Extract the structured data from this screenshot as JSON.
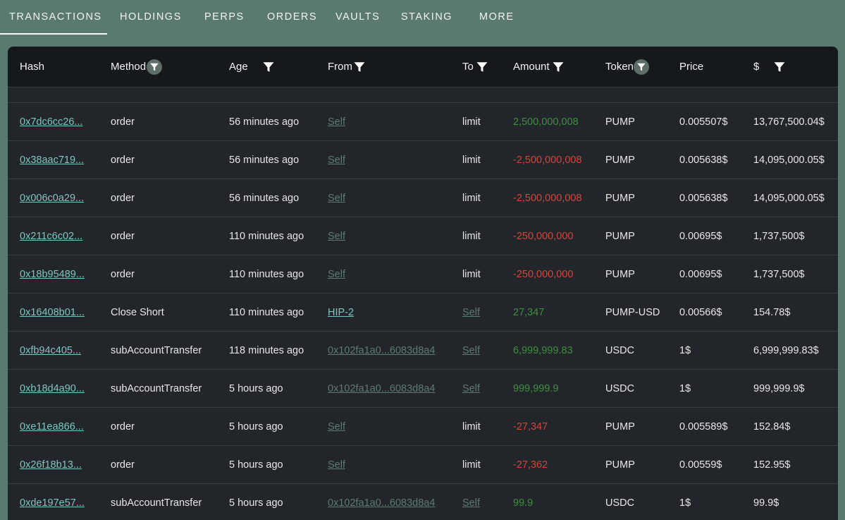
{
  "tabs": [
    {
      "label": "TRANSACTIONS",
      "active": true
    },
    {
      "label": "HOLDINGS"
    },
    {
      "label": "PERPS"
    },
    {
      "label": "ORDERS"
    },
    {
      "label": "VAULTS"
    },
    {
      "label": "STAKING"
    },
    {
      "label": "MORE"
    }
  ],
  "columns": {
    "hash": "Hash",
    "method": "Method",
    "age": "Age",
    "from": "From",
    "to": "To",
    "amount": "Amount",
    "token": "Token",
    "price": "Price",
    "usd": "$"
  },
  "rows": [
    {
      "hash": "0x7dc6cc26...",
      "method": "order",
      "age": "56 minutes ago",
      "from": "Self",
      "to": "limit",
      "amount": "2,500,000,008",
      "token": "PUMP",
      "price": "0.005507$",
      "usd": "13,767,500.04$"
    },
    {
      "hash": "0x38aac719...",
      "method": "order",
      "age": "56 minutes ago",
      "from": "Self",
      "to": "limit",
      "amount": "-2,500,000,008",
      "token": "PUMP",
      "price": "0.005638$",
      "usd": "14,095,000.05$"
    },
    {
      "hash": "0x006c0a29...",
      "method": "order",
      "age": "56 minutes ago",
      "from": "Self",
      "to": "limit",
      "amount": "-2,500,000,008",
      "token": "PUMP",
      "price": "0.005638$",
      "usd": "14,095,000.05$"
    },
    {
      "hash": "0x211c6c02...",
      "method": "order",
      "age": "110 minutes ago",
      "from": "Self",
      "to": "limit",
      "amount": "-250,000,000",
      "token": "PUMP",
      "price": "0.00695$",
      "usd": "1,737,500$"
    },
    {
      "hash": "0x18b95489...",
      "method": "order",
      "age": "110 minutes ago",
      "from": "Self",
      "to": "limit",
      "amount": "-250,000,000",
      "token": "PUMP",
      "price": "0.00695$",
      "usd": "1,737,500$"
    },
    {
      "hash": "0x16408b01...",
      "method": "Close Short",
      "age": "110 minutes ago",
      "from": "HIP-2",
      "to": "Self",
      "amount": "27,347",
      "token": "PUMP-USD",
      "price": "0.00566$",
      "usd": "154.78$"
    },
    {
      "hash": "0xfb94c405...",
      "method": "subAccountTransfer",
      "age": "118 minutes ago",
      "from": "0x102fa1a0...6083d8a4",
      "to": "Self",
      "amount": "6,999,999.83",
      "token": "USDC",
      "price": "1$",
      "usd": "6,999,999.83$"
    },
    {
      "hash": "0xb18d4a90...",
      "method": "subAccountTransfer",
      "age": "5 hours ago",
      "from": "0x102fa1a0...6083d8a4",
      "to": "Self",
      "amount": "999,999.9",
      "token": "USDC",
      "price": "1$",
      "usd": "999,999.9$"
    },
    {
      "hash": "0xe11ea866...",
      "method": "order",
      "age": "5 hours ago",
      "from": "Self",
      "to": "limit",
      "amount": "-27,347",
      "token": "PUMP",
      "price": "0.005589$",
      "usd": "152.84$"
    },
    {
      "hash": "0x26f18b13...",
      "method": "order",
      "age": "5 hours ago",
      "from": "Self",
      "to": "limit",
      "amount": "-27,362",
      "token": "PUMP",
      "price": "0.00559$",
      "usd": "152.95$"
    },
    {
      "hash": "0xde197e57...",
      "method": "subAccountTransfer",
      "age": "5 hours ago",
      "from": "0x102fa1a0...6083d8a4",
      "to": "Self",
      "amount": "99.9",
      "token": "USDC",
      "price": "1$",
      "usd": "99.9$"
    }
  ],
  "colors": {
    "positive": "#3f8f3f",
    "negative": "#d8433b",
    "link": "#7cc7be",
    "muted_link": "#5f7a72"
  }
}
